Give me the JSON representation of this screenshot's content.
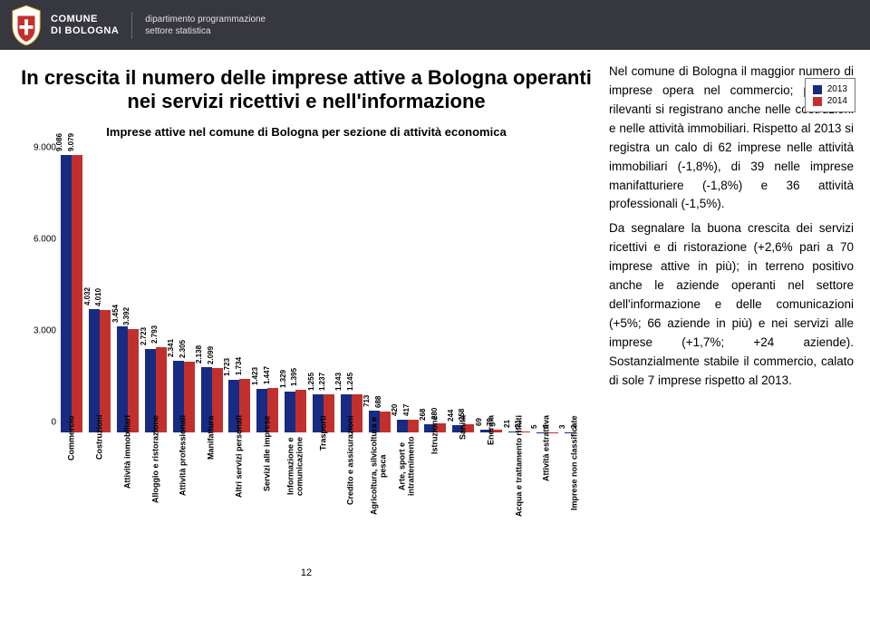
{
  "header": {
    "brand_l1": "COMUNE",
    "brand_l2": "DI BOLOGNA",
    "dept_l1": "dipartimento programmazione",
    "dept_l2": "settore statistica"
  },
  "title": "In crescita il numero delle imprese attive a Bologna operanti nei servizi ricettivi e nell'informazione",
  "chart": {
    "title": "Imprese attive nel comune di Bologna per sezione di attività economica",
    "ymax": 9500,
    "ytick_step": 3000,
    "colors": {
      "y2013": "#172b82",
      "y2014": "#c2302e"
    },
    "legend": [
      {
        "label": "2013",
        "color": "#172b82"
      },
      {
        "label": "2014",
        "color": "#c2302e"
      }
    ],
    "categories": [
      {
        "label": "Commercio",
        "v2013": 9086,
        "v2014": 9079,
        "d2013": "9.086",
        "d2014": "9.079"
      },
      {
        "label": "Costruzioni",
        "v2013": 4032,
        "v2014": 4010,
        "d2013": "4.032",
        "d2014": "4.010"
      },
      {
        "label": "Attività immobiliari",
        "v2013": 3454,
        "v2014": 3392,
        "d2013": "3.454",
        "d2014": "3.392"
      },
      {
        "label": "Alloggio e ristorazione",
        "v2013": 2723,
        "v2014": 2793,
        "d2013": "2.723",
        "d2014": "2.793"
      },
      {
        "label": "Attività professionali",
        "v2013": 2341,
        "v2014": 2305,
        "d2013": "2.341",
        "d2014": "2.305"
      },
      {
        "label": "Manifattura",
        "v2013": 2138,
        "v2014": 2099,
        "d2013": "2.138",
        "d2014": "2.099"
      },
      {
        "label": "Altri servizi personali",
        "v2013": 1723,
        "v2014": 1734,
        "d2013": "1.723",
        "d2014": "1.734"
      },
      {
        "label": "Servizi alle imprese",
        "v2013": 1423,
        "v2014": 1447,
        "d2013": "1.423",
        "d2014": "1.447"
      },
      {
        "label": "Informazione e comunicazione",
        "v2013": 1329,
        "v2014": 1395,
        "d2013": "1.329",
        "d2014": "1.395"
      },
      {
        "label": "Trasporti",
        "v2013": 1255,
        "v2014": 1237,
        "d2013": "1.255",
        "d2014": "1.237"
      },
      {
        "label": "Credito e assicurazioni",
        "v2013": 1243,
        "v2014": 1245,
        "d2013": "1.243",
        "d2014": "1.245"
      },
      {
        "label": "Agricoltura, silvicoltura e pesca",
        "v2013": 713,
        "v2014": 688,
        "d2013": "713",
        "d2014": "688"
      },
      {
        "label": "Arte, sport e intrattenimento",
        "v2013": 420,
        "v2014": 417,
        "d2013": "420",
        "d2014": "417"
      },
      {
        "label": "Istruzione",
        "v2013": 268,
        "v2014": 280,
        "d2013": "268",
        "d2014": "280"
      },
      {
        "label": "Sanità",
        "v2013": 244,
        "v2014": 258,
        "d2013": "244",
        "d2014": "258"
      },
      {
        "label": "Energia",
        "v2013": 69,
        "v2014": 79,
        "d2013": "69",
        "d2014": "79"
      },
      {
        "label": "Acqua e trattamento rifiuti",
        "v2013": 21,
        "v2014": 21,
        "d2013": "21",
        "d2014": "21"
      },
      {
        "label": "Attività estrattiva",
        "v2013": 5,
        "v2014": 4,
        "d2013": "5",
        "d2014": "4"
      },
      {
        "label": "Imprese non classificate",
        "v2013": 3,
        "v2014": 2,
        "d2013": "3",
        "d2014": "2"
      }
    ]
  },
  "body_text": "Nel comune di Bologna il maggior numero di imprese opera nel commercio; presenze rilevanti si registrano anche nelle costruzioni e nelle attività immobiliari. Rispetto al 2013 si registra un calo di 62 imprese nelle attività immobiliari (-1,8%), di 39 nelle imprese manifatturiere (-1,8%) e 36 attività professionali (-1,5%).\nDa segnalare la buona crescita dei servizi ricettivi e di ristorazione (+2,6% pari a 70 imprese attive in più); in terreno positivo anche le aziende operanti nel settore dell'informazione e delle comunicazioni (+5%; 66 aziende in più) e nei servizi alle imprese (+1,7%; +24 aziende). Sostanzialmente stabile il commercio, calato di sole 7 imprese rispetto al 2013.",
  "page": "12"
}
